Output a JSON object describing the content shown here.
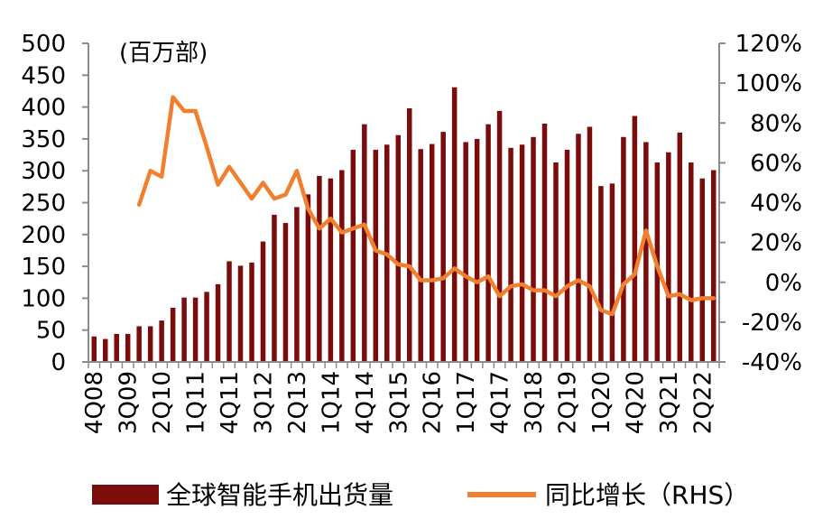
{
  "chart_data": {
    "type": "bar+line",
    "unit_label": "(百万部)",
    "categories": [
      "4Q08",
      "1Q09",
      "2Q09",
      "3Q09",
      "4Q09",
      "1Q10",
      "2Q10",
      "3Q10",
      "4Q10",
      "1Q11",
      "2Q11",
      "3Q11",
      "4Q11",
      "1Q12",
      "2Q12",
      "3Q12",
      "4Q12",
      "1Q13",
      "2Q13",
      "3Q13",
      "4Q13",
      "1Q14",
      "2Q14",
      "3Q14",
      "4Q14",
      "1Q15",
      "2Q15",
      "3Q15",
      "4Q15",
      "1Q16",
      "2Q16",
      "3Q16",
      "4Q16",
      "1Q17",
      "2Q17",
      "3Q17",
      "4Q17",
      "1Q18",
      "2Q18",
      "3Q18",
      "4Q18",
      "1Q19",
      "2Q19",
      "3Q19",
      "4Q19",
      "1Q20",
      "2Q20",
      "3Q20",
      "4Q20",
      "1Q21",
      "2Q21",
      "3Q21",
      "4Q21",
      "1Q22",
      "2Q22",
      "3Q22"
    ],
    "x_tick_labels": [
      "4Q08",
      "3Q09",
      "2Q10",
      "1Q11",
      "4Q11",
      "3Q12",
      "2Q13",
      "1Q14",
      "4Q14",
      "3Q15",
      "2Q16",
      "1Q17",
      "4Q17",
      "3Q18",
      "2Q19",
      "1Q20",
      "4Q20",
      "3Q21",
      "2Q22"
    ],
    "series": [
      {
        "name": "全球智能手机出货量",
        "axis": "left",
        "color": "#7B0C0C",
        "values": [
          40,
          36,
          44,
          44,
          56,
          56,
          65,
          85,
          101,
          101,
          110,
          122,
          158,
          151,
          156,
          189,
          231,
          218,
          243,
          263,
          292,
          288,
          301,
          333,
          373,
          333,
          341,
          356,
          398,
          334,
          342,
          361,
          431,
          345,
          350,
          373,
          394,
          336,
          341,
          353,
          374,
          313,
          333,
          358,
          369,
          276,
          280,
          353,
          386,
          345,
          313,
          329,
          360,
          313,
          288,
          301
        ]
      },
      {
        "name": "同比增长（RHS）",
        "axis": "right",
        "color": "#F08030",
        "values": [
          null,
          null,
          null,
          null,
          39,
          56,
          53,
          93,
          86,
          86,
          68,
          49,
          58,
          50,
          42,
          50,
          42,
          44,
          56,
          37,
          27,
          32,
          25,
          27,
          29,
          16,
          14,
          9,
          8,
          1,
          1,
          2,
          7,
          3,
          0,
          3,
          -7,
          -2,
          -1,
          -4,
          -4,
          -7,
          -2,
          1,
          -2,
          -14,
          -16,
          -1,
          4,
          26,
          8,
          -7,
          -6,
          -9,
          -8,
          -8
        ]
      }
    ],
    "left_axis": {
      "min": 0,
      "max": 500,
      "step": 50,
      "tick_labels": [
        "0",
        "50",
        "100",
        "150",
        "200",
        "250",
        "300",
        "350",
        "400",
        "450",
        "500"
      ]
    },
    "right_axis": {
      "min": -40,
      "max": 120,
      "step": 20,
      "tick_labels": [
        "-40%",
        "-20%",
        "0%",
        "20%",
        "40%",
        "60%",
        "80%",
        "100%",
        "120%"
      ]
    },
    "legend": {
      "position": "bottom",
      "entries": [
        "全球智能手机出货量",
        "同比增长（RHS）"
      ]
    }
  }
}
